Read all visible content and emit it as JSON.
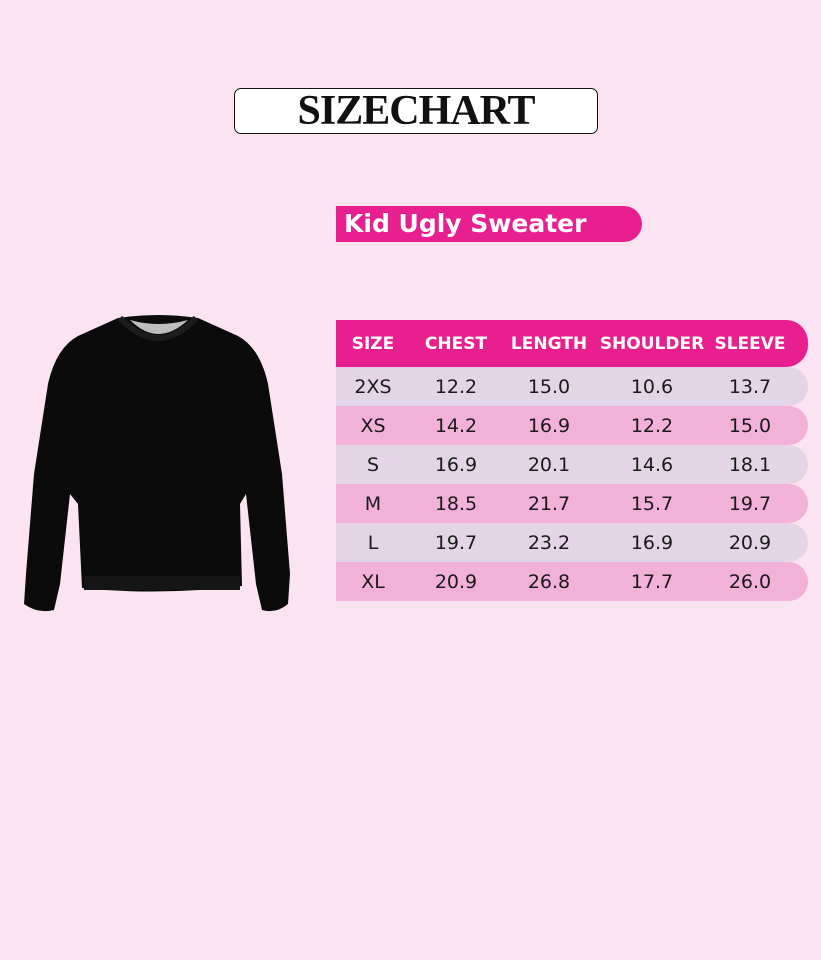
{
  "title": "SIZECHART",
  "subtitle": "Kid Ugly Sweater",
  "table": {
    "headers": [
      "SIZE",
      "CHEST",
      "LENGTH",
      "SHOULDER",
      "SLEEVE"
    ],
    "rows": [
      [
        "2XS",
        "12.2",
        "15.0",
        "10.6",
        "13.7"
      ],
      [
        "XS",
        "14.2",
        "16.9",
        "12.2",
        "15.0"
      ],
      [
        "S",
        "16.9",
        "20.1",
        "14.6",
        "18.1"
      ],
      [
        "M",
        "18.5",
        "21.7",
        "15.7",
        "19.7"
      ],
      [
        "L",
        "19.7",
        "23.2",
        "16.9",
        "20.9"
      ],
      [
        "XL",
        "20.9",
        "26.8",
        "17.7",
        "26.0"
      ]
    ]
  },
  "colors": {
    "accent": "#e81f8e",
    "row_light": "#e3d5e6",
    "row_pink": "#f2b1d9",
    "background": "#fbe3f2"
  }
}
